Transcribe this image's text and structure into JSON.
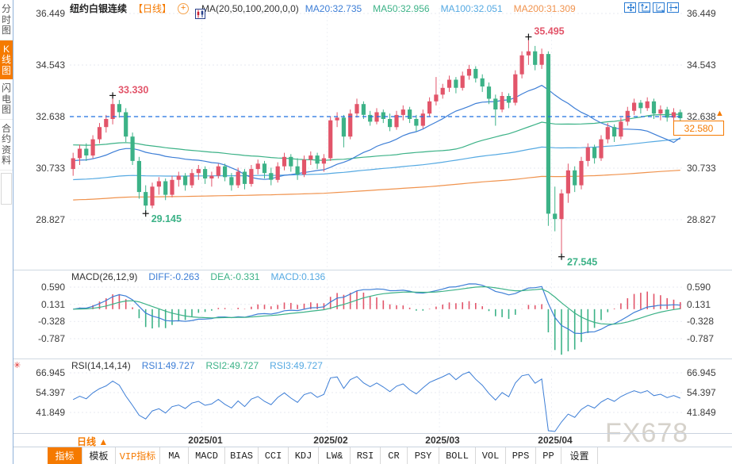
{
  "header": {
    "title": "纽约白银连续",
    "period": "【日线】",
    "ma_formula": "MA(20,50,100,200,0,0)",
    "ma_values": [
      {
        "text": "MA20:32.735",
        "color": "#3d7ed6"
      },
      {
        "text": "MA50:32.956",
        "color": "#3cb287"
      },
      {
        "text": "MA100:32.051",
        "color": "#55a9e2"
      },
      {
        "text": "MA200:31.309",
        "color": "#f0934e"
      }
    ],
    "window_icons": [
      "crosshair-icon",
      "zoom-axis-up-icon",
      "zoom-axis-right-icon",
      "pan-right-icon"
    ]
  },
  "sidebar": {
    "tabs": [
      {
        "label": "分时图",
        "name": "tab-time-chart",
        "active": false
      },
      {
        "label": "K线图",
        "name": "tab-kline-chart",
        "active": true
      },
      {
        "label": "闪电图",
        "name": "tab-flash-chart",
        "active": false
      },
      {
        "label": "合约资料",
        "name": "tab-contract-info",
        "active": false
      }
    ]
  },
  "main_chart": {
    "last_price_tag": "32.580"
  },
  "macd_panel": {
    "title": "MACD(26,12,9)",
    "values": [
      {
        "text": "DIFF:-0.263",
        "color": "#3d7ed6"
      },
      {
        "text": "DEA:-0.331",
        "color": "#3cb287"
      },
      {
        "text": "MACD:0.136",
        "color": "#55a9e2"
      }
    ]
  },
  "rsi_panel": {
    "title": "RSI(14,14,14)",
    "values": [
      {
        "text": "RSI1:49.727",
        "color": "#3d7ed6"
      },
      {
        "text": "RSI2:49.727",
        "color": "#3cb287"
      },
      {
        "text": "RSI3:49.727",
        "color": "#55a9e2"
      }
    ]
  },
  "xaxis": {
    "period": "日线 ▲"
  },
  "toolbar": {
    "items": [
      {
        "label": "指标",
        "name": "toolbar-indicators",
        "active": true
      },
      {
        "label": "模板",
        "name": "toolbar-templates"
      },
      {
        "label": "VIP指标",
        "name": "toolbar-vip-indicators",
        "vip": true
      },
      {
        "label": "MA",
        "name": "toolbar-ma"
      },
      {
        "label": "MACD",
        "name": "toolbar-macd"
      },
      {
        "label": "BIAS",
        "name": "toolbar-bias"
      },
      {
        "label": "CCI",
        "name": "toolbar-cci"
      },
      {
        "label": "KDJ",
        "name": "toolbar-kdj"
      },
      {
        "label": "LW&",
        "name": "toolbar-lwr"
      },
      {
        "label": "RSI",
        "name": "toolbar-rsi"
      },
      {
        "label": "CR",
        "name": "toolbar-cr"
      },
      {
        "label": "PSY",
        "name": "toolbar-psy"
      },
      {
        "label": "BOLL",
        "name": "toolbar-boll"
      },
      {
        "label": "VOL",
        "name": "toolbar-vol"
      },
      {
        "label": "PPS",
        "name": "toolbar-pps"
      },
      {
        "label": "PP",
        "name": "toolbar-pp"
      },
      {
        "label": "设置",
        "name": "toolbar-settings"
      }
    ]
  },
  "icons": {
    "circle_plus": "+",
    "price_marker": "▲",
    "sparkle": "✳"
  },
  "watermark": "FX678",
  "colors": {
    "up": "#e2556a",
    "down": "#3cb287",
    "ma20": "#3d7ed6",
    "ma50": "#3cb287",
    "ma100": "#55a9e2",
    "ma200": "#f0934e",
    "accent_orange": "#f57a00",
    "price_line": "#1e6fe0",
    "grid": "#e7eaf1"
  },
  "chart_data": {
    "type": "candlestick",
    "title": "纽约白银连续 日线",
    "y_ticks": [
      36.449,
      34.543,
      32.638,
      30.733,
      28.827
    ],
    "prev_close": 32.638,
    "last_price": 32.58,
    "x_labels": [
      {
        "label": "2025/01",
        "index": 20
      },
      {
        "label": "2025/02",
        "index": 39
      },
      {
        "label": "2025/03",
        "index": 56
      },
      {
        "label": "2025/04",
        "index": 73
      }
    ],
    "annotations": [
      {
        "text": "33.330",
        "index": 6,
        "price": 33.33,
        "dir": "up"
      },
      {
        "text": "29.145",
        "index": 11,
        "price": 29.145,
        "dir": "down"
      },
      {
        "text": "35.495",
        "index": 69,
        "price": 35.495,
        "dir": "up"
      },
      {
        "text": "27.545",
        "index": 74,
        "price": 27.545,
        "dir": "down"
      }
    ],
    "ma_periods": [
      20,
      50,
      100,
      200
    ],
    "macd": {
      "fast": 12,
      "slow": 26,
      "signal": 9,
      "y_ticks": [
        0.59,
        0.131,
        -0.328,
        -0.787
      ]
    },
    "rsi": {
      "period": 14,
      "y_ticks": [
        66.945,
        54.397,
        41.849
      ]
    },
    "candles": [
      [
        30.7,
        31.3,
        30.45,
        31.1
      ],
      [
        31.1,
        31.6,
        30.85,
        31.45
      ],
      [
        31.45,
        31.65,
        31.0,
        31.2
      ],
      [
        31.2,
        31.95,
        31.1,
        31.8
      ],
      [
        31.8,
        32.4,
        31.65,
        32.25
      ],
      [
        32.25,
        32.7,
        32.05,
        32.55
      ],
      [
        32.55,
        33.33,
        32.35,
        33.1
      ],
      [
        33.1,
        33.25,
        32.6,
        32.8
      ],
      [
        32.8,
        32.95,
        31.7,
        31.9
      ],
      [
        31.9,
        32.05,
        30.85,
        31.0
      ],
      [
        31.0,
        31.15,
        29.6,
        29.85
      ],
      [
        29.85,
        30.1,
        29.145,
        29.35
      ],
      [
        29.35,
        30.2,
        29.25,
        30.05
      ],
      [
        30.05,
        30.4,
        29.75,
        30.25
      ],
      [
        30.25,
        30.35,
        29.55,
        29.75
      ],
      [
        29.75,
        30.45,
        29.65,
        30.3
      ],
      [
        30.3,
        30.6,
        30.05,
        30.45
      ],
      [
        30.45,
        30.55,
        29.9,
        30.1
      ],
      [
        30.1,
        30.7,
        30.0,
        30.55
      ],
      [
        30.55,
        30.85,
        30.3,
        30.7
      ],
      [
        30.7,
        30.8,
        30.15,
        30.35
      ],
      [
        30.35,
        30.6,
        30.05,
        30.45
      ],
      [
        30.45,
        30.9,
        30.35,
        30.8
      ],
      [
        30.8,
        30.9,
        30.25,
        30.4
      ],
      [
        30.4,
        30.55,
        29.9,
        30.1
      ],
      [
        30.1,
        30.75,
        30.0,
        30.6
      ],
      [
        30.6,
        30.7,
        29.95,
        30.15
      ],
      [
        30.15,
        30.85,
        30.05,
        30.7
      ],
      [
        30.7,
        31.05,
        30.5,
        30.9
      ],
      [
        30.9,
        31.0,
        30.35,
        30.55
      ],
      [
        30.55,
        30.75,
        30.1,
        30.3
      ],
      [
        30.3,
        30.95,
        30.2,
        30.8
      ],
      [
        30.8,
        31.3,
        30.65,
        31.15
      ],
      [
        31.15,
        31.25,
        30.6,
        30.8
      ],
      [
        30.8,
        31.1,
        30.3,
        30.5
      ],
      [
        30.5,
        31.2,
        30.4,
        31.05
      ],
      [
        31.05,
        31.35,
        30.85,
        31.2
      ],
      [
        31.2,
        31.3,
        30.7,
        30.9
      ],
      [
        30.9,
        31.25,
        30.6,
        31.1
      ],
      [
        31.1,
        32.65,
        31.0,
        32.5
      ],
      [
        32.5,
        32.8,
        32.25,
        32.6
      ],
      [
        32.6,
        32.7,
        31.5,
        31.9
      ],
      [
        31.9,
        32.9,
        31.8,
        32.75
      ],
      [
        32.75,
        33.3,
        32.6,
        33.1
      ],
      [
        33.1,
        33.2,
        32.55,
        32.7
      ],
      [
        32.7,
        32.85,
        32.3,
        32.45
      ],
      [
        32.45,
        32.95,
        32.35,
        32.8
      ],
      [
        32.8,
        32.9,
        32.4,
        32.55
      ],
      [
        32.55,
        32.75,
        32.1,
        32.25
      ],
      [
        32.25,
        32.85,
        32.15,
        32.7
      ],
      [
        32.7,
        33.05,
        32.5,
        32.9
      ],
      [
        32.9,
        33.0,
        32.4,
        32.55
      ],
      [
        32.55,
        32.7,
        32.1,
        32.3
      ],
      [
        32.3,
        32.9,
        32.2,
        32.75
      ],
      [
        32.75,
        33.35,
        32.65,
        33.2
      ],
      [
        33.2,
        34.1,
        33.05,
        33.45
      ],
      [
        33.45,
        33.85,
        33.3,
        33.7
      ],
      [
        33.7,
        34.15,
        33.55,
        34.0
      ],
      [
        34.0,
        34.1,
        33.5,
        33.7
      ],
      [
        33.7,
        34.3,
        33.6,
        34.15
      ],
      [
        34.15,
        34.55,
        34.0,
        34.4
      ],
      [
        34.4,
        34.5,
        33.9,
        34.05
      ],
      [
        34.05,
        34.2,
        33.55,
        33.75
      ],
      [
        33.75,
        33.9,
        33.1,
        33.3
      ],
      [
        33.3,
        33.45,
        32.3,
        32.9
      ],
      [
        32.9,
        33.55,
        32.8,
        33.4
      ],
      [
        33.4,
        33.5,
        32.95,
        33.15
      ],
      [
        33.15,
        34.35,
        33.05,
        34.2
      ],
      [
        34.2,
        35.05,
        34.05,
        34.9
      ],
      [
        34.9,
        35.495,
        34.55,
        35.05
      ],
      [
        35.05,
        35.25,
        34.35,
        34.55
      ],
      [
        34.55,
        35.15,
        34.4,
        34.95
      ],
      [
        34.95,
        35.05,
        28.6,
        29.05
      ],
      [
        29.05,
        30.05,
        28.4,
        28.85
      ],
      [
        28.85,
        29.95,
        27.545,
        29.8
      ],
      [
        29.8,
        30.9,
        29.45,
        30.65
      ],
      [
        30.65,
        30.8,
        29.85,
        30.1
      ],
      [
        30.1,
        31.15,
        29.95,
        31.0
      ],
      [
        31.0,
        31.65,
        30.8,
        31.5
      ],
      [
        31.5,
        31.6,
        30.9,
        31.1
      ],
      [
        31.1,
        31.95,
        31.0,
        31.8
      ],
      [
        31.8,
        32.4,
        31.65,
        32.25
      ],
      [
        32.25,
        32.35,
        31.7,
        31.9
      ],
      [
        31.9,
        32.6,
        31.8,
        32.45
      ],
      [
        32.45,
        33.0,
        32.3,
        32.85
      ],
      [
        32.85,
        33.3,
        32.7,
        33.15
      ],
      [
        33.15,
        33.25,
        32.75,
        32.95
      ],
      [
        32.95,
        33.35,
        32.85,
        33.2
      ],
      [
        33.2,
        33.3,
        32.55,
        32.75
      ],
      [
        32.75,
        33.05,
        32.5,
        32.9
      ],
      [
        32.9,
        33.0,
        32.45,
        32.6
      ],
      [
        32.6,
        32.95,
        32.4,
        32.8
      ],
      [
        32.8,
        32.9,
        32.35,
        32.58
      ]
    ]
  }
}
